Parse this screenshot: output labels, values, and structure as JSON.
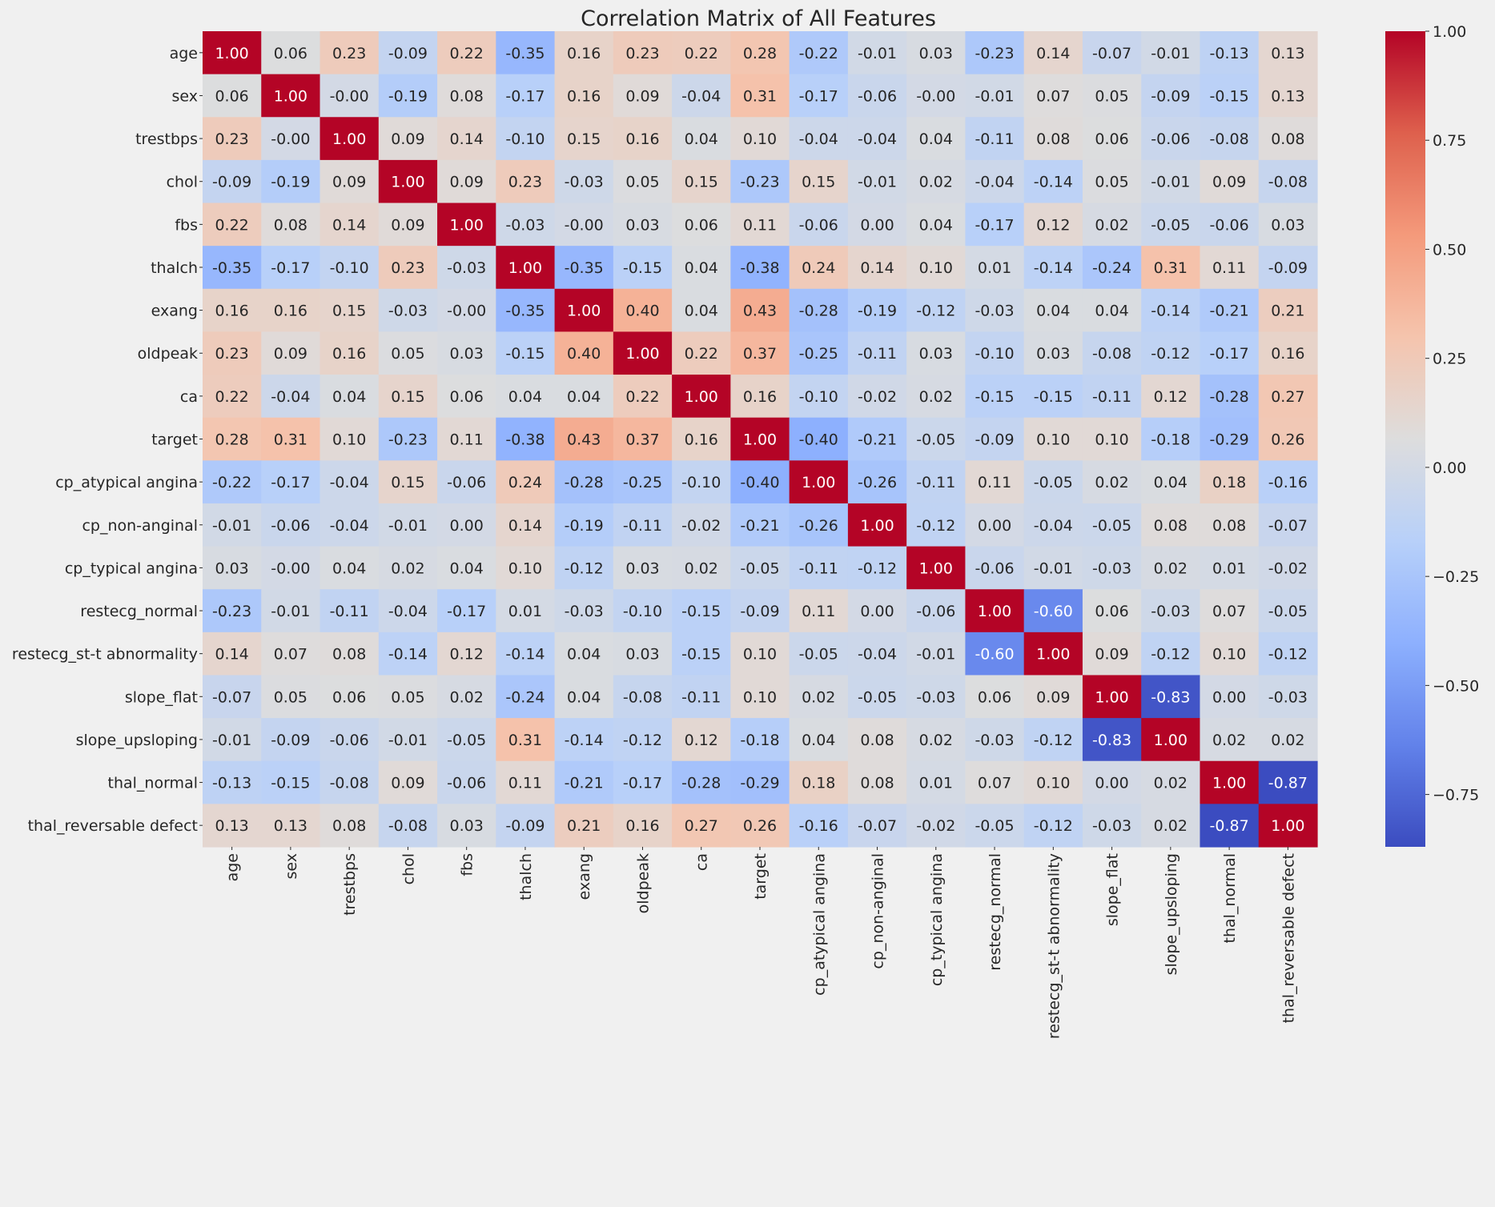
{
  "chart_data": {
    "type": "heatmap",
    "title": "Correlation Matrix of All Features",
    "colormap": "coolwarm",
    "vmin": -0.87,
    "vmax": 1.0,
    "colorbar_ticks": [
      "1.00",
      "0.75",
      "0.50",
      "0.25",
      "0.00",
      "−0.25",
      "−0.50",
      "−0.75"
    ],
    "colorbar_tick_values": [
      1.0,
      0.75,
      0.5,
      0.25,
      0.0,
      -0.25,
      -0.5,
      -0.75
    ],
    "labels": [
      "age",
      "sex",
      "trestbps",
      "chol",
      "fbs",
      "thalch",
      "exang",
      "oldpeak",
      "ca",
      "target",
      "cp_atypical angina",
      "cp_non-anginal",
      "cp_typical angina",
      "restecg_normal",
      "restecg_st-t abnormality",
      "slope_flat",
      "slope_upsloping",
      "thal_normal",
      "thal_reversable defect"
    ],
    "matrix": [
      [
        "1.00",
        "0.06",
        "0.23",
        "-0.09",
        "0.22",
        "-0.35",
        "0.16",
        "0.23",
        "0.22",
        "0.28",
        "-0.22",
        "-0.01",
        "0.03",
        "-0.23",
        "0.14",
        "-0.07",
        "-0.01",
        "-0.13",
        "0.13"
      ],
      [
        "0.06",
        "1.00",
        "-0.00",
        "-0.19",
        "0.08",
        "-0.17",
        "0.16",
        "0.09",
        "-0.04",
        "0.31",
        "-0.17",
        "-0.06",
        "-0.00",
        "-0.01",
        "0.07",
        "0.05",
        "-0.09",
        "-0.15",
        "0.13"
      ],
      [
        "0.23",
        "-0.00",
        "1.00",
        "0.09",
        "0.14",
        "-0.10",
        "0.15",
        "0.16",
        "0.04",
        "0.10",
        "-0.04",
        "-0.04",
        "0.04",
        "-0.11",
        "0.08",
        "0.06",
        "-0.06",
        "-0.08",
        "0.08"
      ],
      [
        "-0.09",
        "-0.19",
        "0.09",
        "1.00",
        "0.09",
        "0.23",
        "-0.03",
        "0.05",
        "0.15",
        "-0.23",
        "0.15",
        "-0.01",
        "0.02",
        "-0.04",
        "-0.14",
        "0.05",
        "-0.01",
        "0.09",
        "-0.08"
      ],
      [
        "0.22",
        "0.08",
        "0.14",
        "0.09",
        "1.00",
        "-0.03",
        "-0.00",
        "0.03",
        "0.06",
        "0.11",
        "-0.06",
        "0.00",
        "0.04",
        "-0.17",
        "0.12",
        "0.02",
        "-0.05",
        "-0.06",
        "0.03"
      ],
      [
        "-0.35",
        "-0.17",
        "-0.10",
        "0.23",
        "-0.03",
        "1.00",
        "-0.35",
        "-0.15",
        "0.04",
        "-0.38",
        "0.24",
        "0.14",
        "0.10",
        "0.01",
        "-0.14",
        "-0.24",
        "0.31",
        "0.11",
        "-0.09"
      ],
      [
        "0.16",
        "0.16",
        "0.15",
        "-0.03",
        "-0.00",
        "-0.35",
        "1.00",
        "0.40",
        "0.04",
        "0.43",
        "-0.28",
        "-0.19",
        "-0.12",
        "-0.03",
        "0.04",
        "0.04",
        "-0.14",
        "-0.21",
        "0.21"
      ],
      [
        "0.23",
        "0.09",
        "0.16",
        "0.05",
        "0.03",
        "-0.15",
        "0.40",
        "1.00",
        "0.22",
        "0.37",
        "-0.25",
        "-0.11",
        "0.03",
        "-0.10",
        "0.03",
        "-0.08",
        "-0.12",
        "-0.17",
        "0.16"
      ],
      [
        "0.22",
        "-0.04",
        "0.04",
        "0.15",
        "0.06",
        "0.04",
        "0.04",
        "0.22",
        "1.00",
        "0.16",
        "-0.10",
        "-0.02",
        "0.02",
        "-0.15",
        "-0.15",
        "-0.11",
        "0.12",
        "-0.28",
        "0.27"
      ],
      [
        "0.28",
        "0.31",
        "0.10",
        "-0.23",
        "0.11",
        "-0.38",
        "0.43",
        "0.37",
        "0.16",
        "1.00",
        "-0.40",
        "-0.21",
        "-0.05",
        "-0.09",
        "0.10",
        "0.10",
        "-0.18",
        "-0.29",
        "0.26"
      ],
      [
        "-0.22",
        "-0.17",
        "-0.04",
        "0.15",
        "-0.06",
        "0.24",
        "-0.28",
        "-0.25",
        "-0.10",
        "-0.40",
        "1.00",
        "-0.26",
        "-0.11",
        "0.11",
        "-0.05",
        "0.02",
        "0.04",
        "0.18",
        "-0.16"
      ],
      [
        "-0.01",
        "-0.06",
        "-0.04",
        "-0.01",
        "0.00",
        "0.14",
        "-0.19",
        "-0.11",
        "-0.02",
        "-0.21",
        "-0.26",
        "1.00",
        "-0.12",
        "0.00",
        "-0.04",
        "-0.05",
        "0.08",
        "0.08",
        "-0.07"
      ],
      [
        "0.03",
        "-0.00",
        "0.04",
        "0.02",
        "0.04",
        "0.10",
        "-0.12",
        "0.03",
        "0.02",
        "-0.05",
        "-0.11",
        "-0.12",
        "1.00",
        "-0.06",
        "-0.01",
        "-0.03",
        "0.02",
        "0.01",
        "-0.02"
      ],
      [
        "-0.23",
        "-0.01",
        "-0.11",
        "-0.04",
        "-0.17",
        "0.01",
        "-0.03",
        "-0.10",
        "-0.15",
        "-0.09",
        "0.11",
        "0.00",
        "-0.06",
        "1.00",
        "-0.60",
        "0.06",
        "-0.03",
        "0.07",
        "-0.05"
      ],
      [
        "0.14",
        "0.07",
        "0.08",
        "-0.14",
        "0.12",
        "-0.14",
        "0.04",
        "0.03",
        "-0.15",
        "0.10",
        "-0.05",
        "-0.04",
        "-0.01",
        "-0.60",
        "1.00",
        "0.09",
        "-0.12",
        "0.10",
        "-0.12"
      ],
      [
        "-0.07",
        "0.05",
        "0.06",
        "0.05",
        "0.02",
        "-0.24",
        "0.04",
        "-0.08",
        "-0.11",
        "0.10",
        "0.02",
        "-0.05",
        "-0.03",
        "0.06",
        "0.09",
        "1.00",
        "-0.83",
        "0.00",
        "-0.03"
      ],
      [
        "-0.01",
        "-0.09",
        "-0.06",
        "-0.01",
        "-0.05",
        "0.31",
        "-0.14",
        "-0.12",
        "0.12",
        "-0.18",
        "0.04",
        "0.08",
        "0.02",
        "-0.03",
        "-0.12",
        "-0.83",
        "1.00",
        "0.02",
        "0.02"
      ],
      [
        "-0.13",
        "-0.15",
        "-0.08",
        "0.09",
        "-0.06",
        "0.11",
        "-0.21",
        "-0.17",
        "-0.28",
        "-0.29",
        "0.18",
        "0.08",
        "0.01",
        "0.07",
        "0.10",
        "0.00",
        "0.02",
        "1.00",
        "-0.87"
      ],
      [
        "0.13",
        "0.13",
        "0.08",
        "-0.08",
        "0.03",
        "-0.09",
        "0.21",
        "0.16",
        "0.27",
        "0.26",
        "-0.16",
        "-0.07",
        "-0.02",
        "-0.05",
        "-0.12",
        "-0.03",
        "0.02",
        "-0.87",
        "1.00"
      ]
    ]
  }
}
